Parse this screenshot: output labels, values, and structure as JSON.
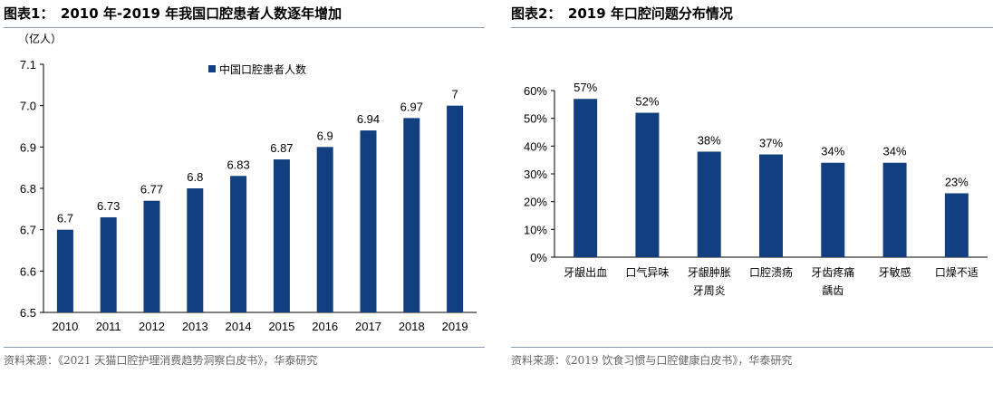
{
  "colors": {
    "bar": "#123f7f",
    "rule": "#8a9ab8",
    "source": "#666666"
  },
  "chart_data": [
    {
      "type": "bar",
      "title": "图表1：　2010 年-2019 年我国口腔患者人数逐年增加",
      "unit_label": "（亿人）",
      "categories": [
        "2010",
        "2011",
        "2012",
        "2013",
        "2014",
        "2015",
        "2016",
        "2017",
        "2018",
        "2019"
      ],
      "series": [
        {
          "name": "中国口腔患者人数",
          "values": [
            6.7,
            6.73,
            6.77,
            6.8,
            6.83,
            6.87,
            6.9,
            6.94,
            6.97,
            7
          ]
        }
      ],
      "data_labels": [
        "6.7",
        "6.73",
        "6.77",
        "6.8",
        "6.83",
        "6.87",
        "6.9",
        "6.94",
        "6.97",
        "7"
      ],
      "ylim": [
        6.5,
        7.1
      ],
      "yticks": [
        "6.5",
        "6.6",
        "6.7",
        "6.8",
        "6.9",
        "7.0",
        "7.1"
      ],
      "legend_position": "top-center",
      "grid": false,
      "source": "资料来源：《2021 天猫口腔护理消费趋势洞察白皮书》，华泰研究"
    },
    {
      "type": "bar",
      "title": "图表2：　2019 年口腔问题分布情况",
      "categories": [
        [
          "牙龈出血"
        ],
        [
          "口气异味"
        ],
        [
          "牙龈肿胀",
          "牙周炎"
        ],
        [
          "口腔溃疡"
        ],
        [
          "牙齿疼痛",
          "龋齿"
        ],
        [
          "牙敏感"
        ],
        [
          "口燥不适"
        ]
      ],
      "values": [
        57,
        52,
        38,
        37,
        34,
        34,
        23
      ],
      "data_labels": [
        "57%",
        "52%",
        "38%",
        "37%",
        "34%",
        "34%",
        "23%"
      ],
      "ylim": [
        0,
        60
      ],
      "yticks": [
        "0%",
        "10%",
        "20%",
        "30%",
        "40%",
        "50%",
        "60%"
      ],
      "grid": false,
      "source": "资料来源：《2019 饮食习惯与口腔健康白皮书》，华泰研究"
    }
  ]
}
